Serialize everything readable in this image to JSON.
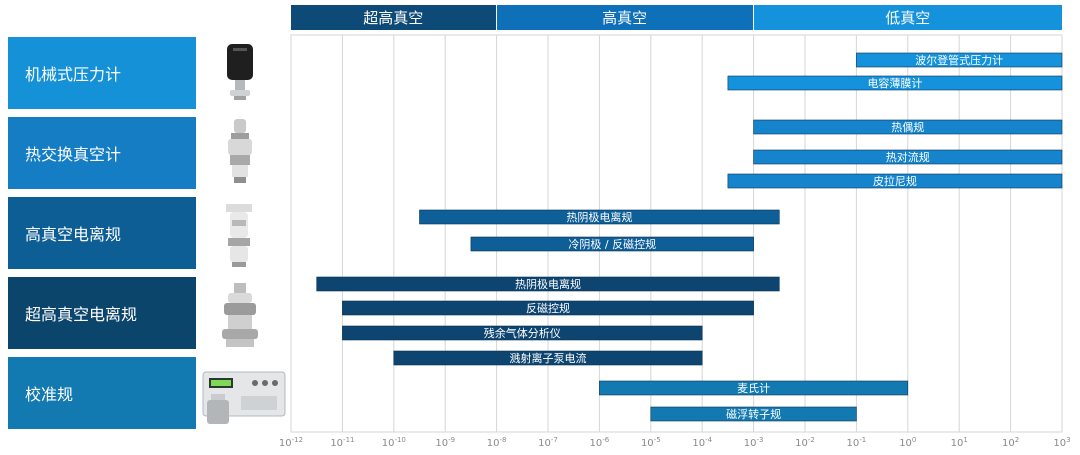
{
  "chart_data": {
    "type": "range-bar",
    "x_scale": "log10",
    "x_range_exp": [
      -12,
      3
    ],
    "x_tick_labels": [
      "10-12",
      "10-11",
      "10-10",
      "10-9",
      "10-8",
      "10-7",
      "10-6",
      "10-5",
      "10-4",
      "10-3",
      "10-2",
      "10-1",
      "100",
      "101",
      "102",
      "103"
    ],
    "bands": [
      {
        "label": "超高真空",
        "from_exp": -12,
        "to_exp": -8,
        "color": "#0d4a78"
      },
      {
        "label": "高真空",
        "from_exp": -8,
        "to_exp": -3,
        "color": "#0d70b8"
      },
      {
        "label": "低真空",
        "from_exp": -3,
        "to_exp": 3,
        "color": "#1592dc"
      }
    ],
    "categories": [
      {
        "label": "机械式压力计",
        "color": "#1591d8"
      },
      {
        "label": "热交换真空计",
        "color": "#147dc4"
      },
      {
        "label": "高真空电离规",
        "color": "#0e5e96"
      },
      {
        "label": "超高真空电离规",
        "color": "#0c456c"
      },
      {
        "label": "校准规",
        "color": "#127ab0"
      }
    ],
    "bars": [
      {
        "label": "波尔登管式压力计",
        "category": 0,
        "from_exp": -1,
        "to_exp": 3,
        "color": "#1592dc"
      },
      {
        "label": "电容薄膜计",
        "category": 0,
        "from_exp": -3.5,
        "to_exp": 3,
        "color": "#1592dc"
      },
      {
        "label": "热偶规",
        "category": 1,
        "from_exp": -3,
        "to_exp": 3,
        "color": "#1584cc"
      },
      {
        "label": "热对流规",
        "category": 1,
        "from_exp": -3,
        "to_exp": 3,
        "color": "#1584cc"
      },
      {
        "label": "皮拉尼规",
        "category": 1,
        "from_exp": -3.5,
        "to_exp": 3,
        "color": "#1584cc"
      },
      {
        "label": "热阴极电离规",
        "category": 2,
        "from_exp": -9.5,
        "to_exp": -2.5,
        "color": "#0e5e98"
      },
      {
        "label": "冷阴极 / 反磁控规",
        "category": 2,
        "from_exp": -8.5,
        "to_exp": -3,
        "color": "#0e5e98"
      },
      {
        "label": "热阴极电离规",
        "category": 3,
        "from_exp": -11.5,
        "to_exp": -2.5,
        "color": "#0d4470"
      },
      {
        "label": "反磁控规",
        "category": 3,
        "from_exp": -11,
        "to_exp": -3,
        "color": "#0d4470"
      },
      {
        "label": "残余气体分析仪",
        "category": 3,
        "from_exp": -11,
        "to_exp": -4,
        "color": "#0d4470"
      },
      {
        "label": "溅射离子泵电流",
        "category": 3,
        "from_exp": -10,
        "to_exp": -4,
        "color": "#0d4470"
      },
      {
        "label": "麦氏计",
        "category": 4,
        "from_exp": -6,
        "to_exp": 0,
        "color": "#127ab0"
      },
      {
        "label": "磁浮转子规",
        "category": 4,
        "from_exp": -5,
        "to_exp": -1,
        "color": "#127ab0"
      }
    ]
  },
  "images": [
    {
      "name": "mechanical-gauge-image"
    },
    {
      "name": "thermal-gauge-image"
    },
    {
      "name": "hv-ion-gauge-image"
    },
    {
      "name": "uhv-ion-gauge-image"
    },
    {
      "name": "calibration-instrument-image"
    }
  ]
}
